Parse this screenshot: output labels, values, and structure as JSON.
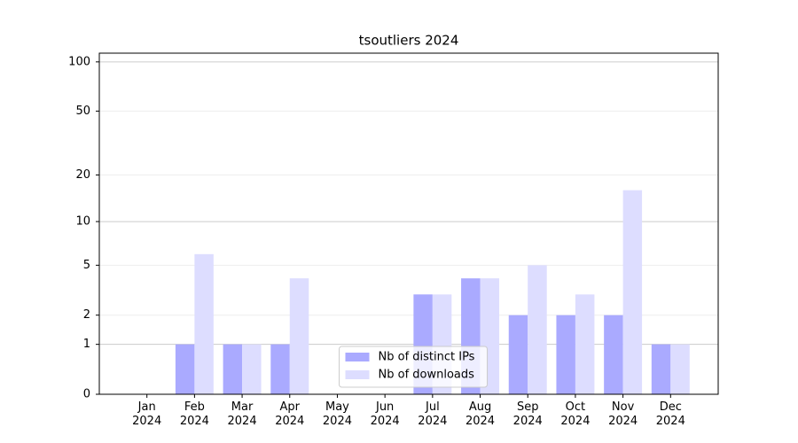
{
  "chart_data": {
    "type": "bar",
    "title": "tsoutliers 2024",
    "categories": [
      "Jan\n2024",
      "Feb\n2024",
      "Mar\n2024",
      "Apr\n2024",
      "May\n2024",
      "Jun\n2024",
      "Jul\n2024",
      "Aug\n2024",
      "Sep\n2024",
      "Oct\n2024",
      "Nov\n2024",
      "Dec\n2024"
    ],
    "series": [
      {
        "name": "Nb of distinct IPs",
        "color": "#aaaaff",
        "values": [
          0,
          1,
          1,
          1,
          0,
          0,
          3,
          4,
          2,
          2,
          2,
          1
        ]
      },
      {
        "name": "Nb of downloads",
        "color": "#ddddff",
        "values": [
          0,
          6,
          1,
          4,
          0,
          0,
          3,
          4,
          5,
          3,
          16,
          1
        ]
      }
    ],
    "yscale": "log1p",
    "ylim": [
      0,
      113
    ],
    "yticks": [
      0,
      1,
      2,
      5,
      10,
      20,
      50,
      100
    ],
    "grid": true,
    "legend": "lower center"
  }
}
